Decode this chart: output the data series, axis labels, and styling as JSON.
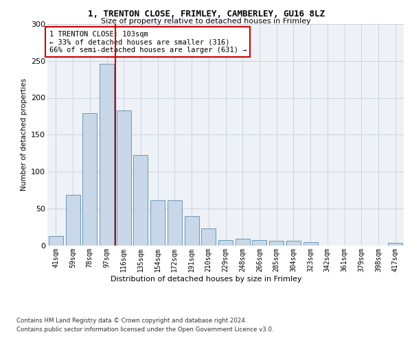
{
  "title": "1, TRENTON CLOSE, FRIMLEY, CAMBERLEY, GU16 8LZ",
  "subtitle": "Size of property relative to detached houses in Frimley",
  "xlabel": "Distribution of detached houses by size in Frimley",
  "ylabel": "Number of detached properties",
  "categories": [
    "41sqm",
    "59sqm",
    "78sqm",
    "97sqm",
    "116sqm",
    "135sqm",
    "154sqm",
    "172sqm",
    "191sqm",
    "210sqm",
    "229sqm",
    "248sqm",
    "266sqm",
    "285sqm",
    "304sqm",
    "323sqm",
    "342sqm",
    "361sqm",
    "379sqm",
    "398sqm",
    "417sqm"
  ],
  "values": [
    13,
    68,
    179,
    246,
    183,
    122,
    61,
    61,
    40,
    23,
    7,
    9,
    7,
    6,
    6,
    4,
    0,
    0,
    0,
    0,
    3
  ],
  "bar_color": "#c8d8e8",
  "bar_edge_color": "#5a8ab0",
  "vline_x": 3.5,
  "vline_color": "#cc0000",
  "annotation_text": "1 TRENTON CLOSE: 103sqm\n← 33% of detached houses are smaller (316)\n66% of semi-detached houses are larger (631) →",
  "annotation_box_color": "#ffffff",
  "annotation_box_edge": "#cc0000",
  "ylim": [
    0,
    300
  ],
  "yticks": [
    0,
    50,
    100,
    150,
    200,
    250,
    300
  ],
  "grid_color": "#c8d4e0",
  "background_color": "#eef2f7",
  "footer1": "Contains HM Land Registry data © Crown copyright and database right 2024.",
  "footer2": "Contains public sector information licensed under the Open Government Licence v3.0."
}
